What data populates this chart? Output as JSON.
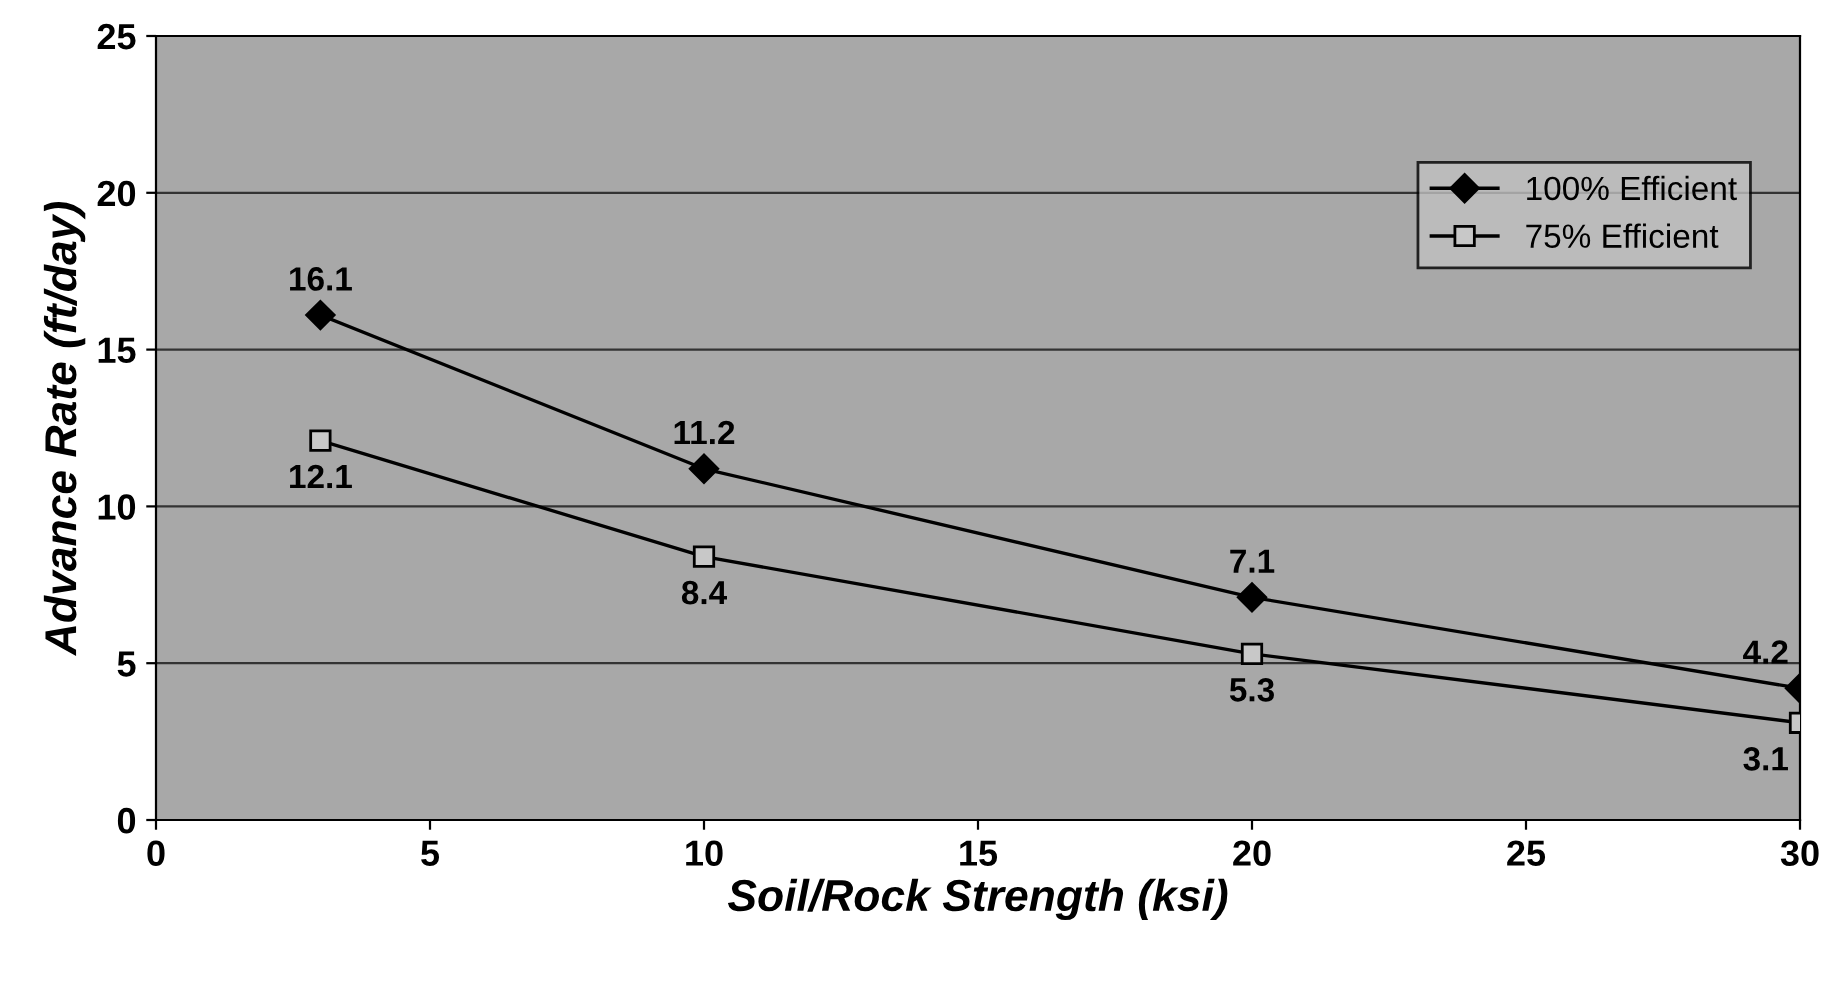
{
  "chart_data": {
    "type": "line",
    "xlabel": "Soil/Rock Strength (ksi)",
    "ylabel": "Advance Rate (ft/day)",
    "x": [
      3,
      10,
      20,
      30
    ],
    "series": [
      {
        "name": "100% Efficient",
        "color": "#000000",
        "marker": "diamond",
        "values": [
          16.1,
          11.2,
          7.1,
          4.2
        ]
      },
      {
        "name": "75% Efficient",
        "color": "#000000",
        "marker": "square",
        "values": [
          12.1,
          8.4,
          5.3,
          3.1
        ]
      }
    ],
    "xlim": [
      0,
      30
    ],
    "xticks": [
      0,
      5,
      10,
      15,
      20,
      25,
      30
    ],
    "ylim": [
      0,
      25
    ],
    "yticks": [
      0,
      5,
      10,
      15,
      20,
      25
    ],
    "grid": "y",
    "legend": "top right",
    "data_labels": true,
    "line_style": "solid"
  }
}
